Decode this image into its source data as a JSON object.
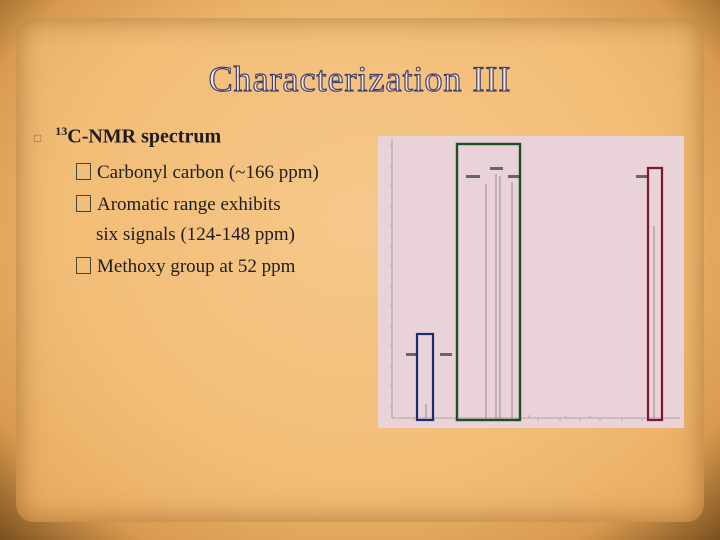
{
  "slide": {
    "title": "Characterization III",
    "main_bullet": {
      "sup": "13",
      "text": "C-NMR spectrum"
    },
    "sub_bullets": [
      {
        "text": "Carbonyl carbon (~166 ppm)"
      },
      {
        "text": "Aromatic range exhibits",
        "continuation": "six signals (124-148 ppm)"
      },
      {
        "text": "Methoxy group at 52 ppm"
      }
    ]
  },
  "spectrum": {
    "background": "#ead2d9",
    "highlight_colors": {
      "carbonyl": "#7a1830",
      "aromatic": "#1f4d24",
      "methoxy": "#1b2d6b"
    }
  }
}
